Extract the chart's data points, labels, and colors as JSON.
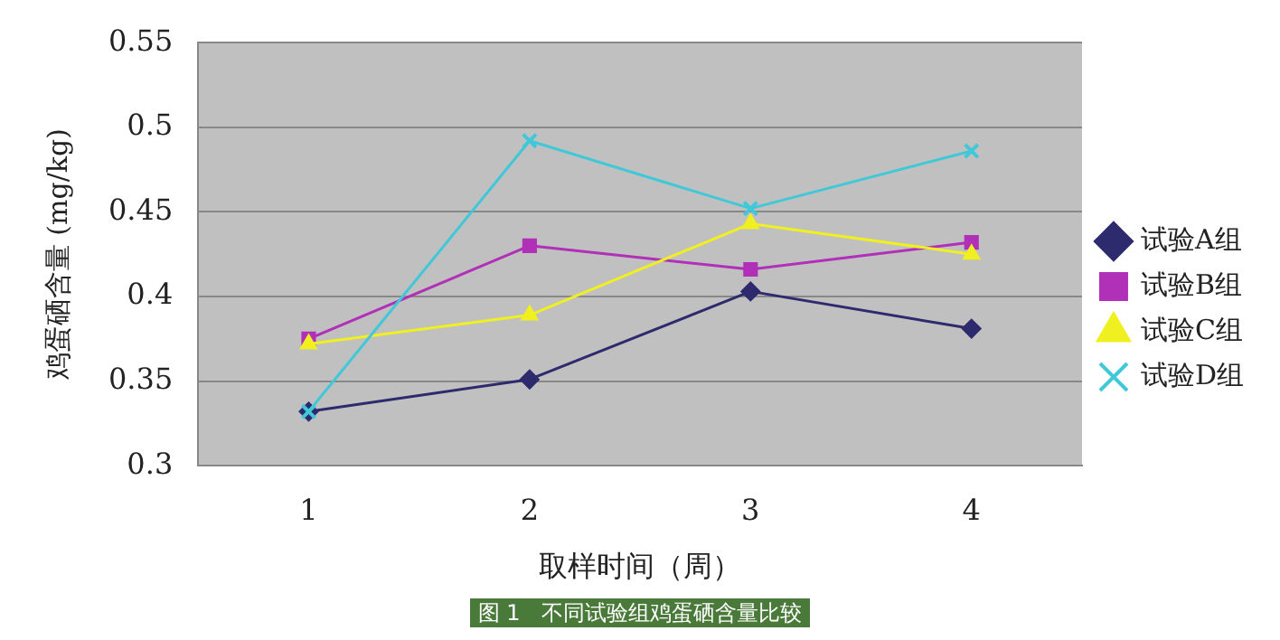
{
  "chart_data": {
    "type": "line",
    "xlabel": "取样时间（周）",
    "ylabel": "鸡蛋硒含量 (mg/kg)",
    "categories": [
      "1",
      "2",
      "3",
      "4"
    ],
    "series": [
      {
        "name": "试验A组",
        "color": "#2e2a6e",
        "marker": "diamond",
        "values": [
          0.332,
          0.351,
          0.403,
          0.381
        ]
      },
      {
        "name": "试验B组",
        "color": "#b030b8",
        "marker": "square",
        "values": [
          0.375,
          0.43,
          0.416,
          0.432
        ]
      },
      {
        "name": "试验C组",
        "color": "#f0f020",
        "marker": "triangle",
        "values": [
          0.372,
          0.389,
          0.443,
          0.425
        ]
      },
      {
        "name": "试验D组",
        "color": "#40c8d8",
        "marker": "cross",
        "values": [
          0.332,
          0.492,
          0.452,
          0.486
        ]
      }
    ],
    "ylim": [
      0.3,
      0.55
    ],
    "yticks": [
      0.3,
      0.35,
      0.4,
      0.45,
      0.5,
      0.55
    ],
    "grid": "y",
    "legend": "right",
    "line_style": "solid",
    "annotations": [
      "图 1　不同试验组鸡蛋硒含量比较"
    ]
  }
}
